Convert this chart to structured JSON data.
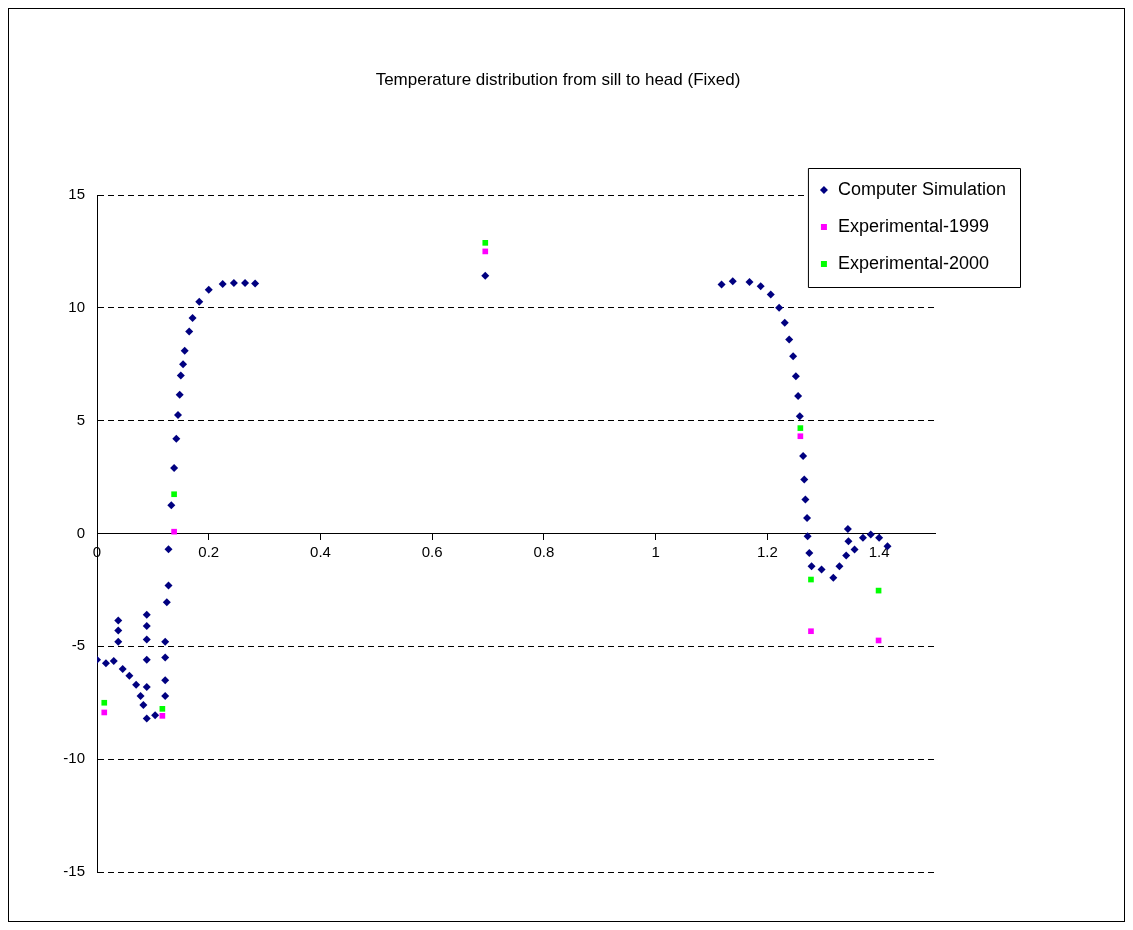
{
  "chart_data": {
    "type": "scatter",
    "title": "Temperature distribution from sill to head (Fixed)",
    "xlim": [
      0,
      1.5
    ],
    "xticks": [
      0,
      0.2,
      0.4,
      0.6,
      0.8,
      1,
      1.2,
      1.4
    ],
    "ylim": [
      -15,
      15
    ],
    "yticks": [
      -15,
      -10,
      -5,
      0,
      5,
      10,
      15
    ],
    "grid": "y",
    "legend": "top right",
    "series": [
      {
        "name": "Computer Simulation",
        "color": "#000080",
        "marker": "diamond",
        "x": [
          0,
          0.016,
          0.03,
          0.038,
          0.038,
          0.038,
          0.046,
          0.058,
          0.07,
          0.078,
          0.083,
          0.089,
          0.089,
          0.089,
          0.089,
          0.089,
          0.089,
          0.104,
          0.122,
          0.122,
          0.122,
          0.122,
          0.125,
          0.128,
          0.128,
          0.133,
          0.138,
          0.142,
          0.145,
          0.148,
          0.15,
          0.154,
          0.157,
          0.165,
          0.171,
          0.183,
          0.2,
          0.225,
          0.245,
          0.265,
          0.283,
          0.695,
          1.118,
          1.138,
          1.168,
          1.188,
          1.206,
          1.221,
          1.231,
          1.239,
          1.246,
          1.251,
          1.255,
          1.258,
          1.264,
          1.266,
          1.268,
          1.271,
          1.272,
          1.275,
          1.279,
          1.297,
          1.318,
          1.329,
          1.341,
          1.344,
          1.345,
          1.356,
          1.371,
          1.385,
          1.4,
          1.415
        ],
        "values": [
          -5.6,
          -5.75,
          -5.65,
          -3.85,
          -4.3,
          -4.8,
          -6.0,
          -6.3,
          -6.7,
          -7.2,
          -7.6,
          -3.6,
          -4.1,
          -4.7,
          -5.6,
          -6.8,
          -8.2,
          -8.05,
          -4.8,
          -5.5,
          -6.5,
          -7.2,
          -3.05,
          -2.3,
          -0.7,
          1.25,
          2.9,
          4.2,
          5.25,
          6.15,
          7.0,
          7.5,
          8.1,
          8.95,
          9.55,
          10.27,
          10.8,
          11.06,
          11.1,
          11.1,
          11.08,
          11.42,
          11.03,
          11.18,
          11.14,
          10.96,
          10.59,
          10.0,
          9.34,
          8.6,
          7.86,
          6.97,
          6.09,
          5.2,
          3.43,
          2.39,
          1.51,
          0.69,
          -0.12,
          -0.86,
          -1.45,
          -1.6,
          -1.96,
          -1.45,
          -0.97,
          0.2,
          -0.34,
          -0.71,
          -0.19,
          -0.04,
          -0.19,
          -0.56
        ]
      },
      {
        "name": "Experimental-1999",
        "color": "#ff00ff",
        "marker": "square",
        "x": [
          0.013,
          0.117,
          0.138,
          0.695,
          1.259,
          1.278,
          1.399
        ],
        "values": [
          -7.93,
          -8.08,
          0.08,
          12.5,
          4.31,
          -4.33,
          -4.74
        ]
      },
      {
        "name": "Experimental-2000",
        "color": "#00ff00",
        "marker": "square",
        "x": [
          0.013,
          0.117,
          0.138,
          0.695,
          1.259,
          1.278,
          1.399
        ],
        "values": [
          -7.5,
          -7.77,
          1.74,
          12.88,
          4.67,
          -2.04,
          -2.53
        ]
      }
    ]
  }
}
